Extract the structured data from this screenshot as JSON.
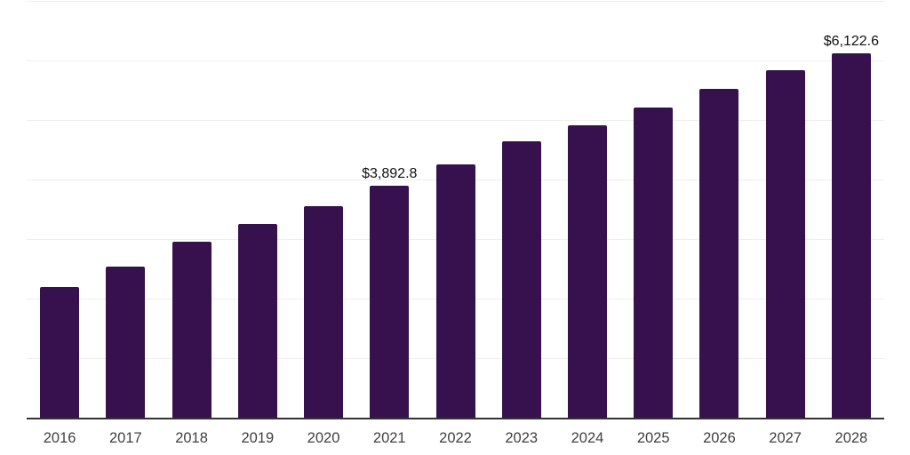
{
  "chart_data": {
    "type": "bar",
    "title": "",
    "xlabel": "",
    "ylabel": "",
    "categories": [
      "2016",
      "2017",
      "2018",
      "2019",
      "2020",
      "2021",
      "2022",
      "2023",
      "2024",
      "2025",
      "2026",
      "2027",
      "2028"
    ],
    "values": [
      2200,
      2545,
      2960,
      3255,
      3555,
      3892.8,
      4255,
      4640,
      4910,
      5215,
      5520,
      5830,
      6122.6
    ],
    "labeled_points": [
      {
        "category": "2021",
        "value": 3892.8,
        "label": "$3,892.8"
      },
      {
        "category": "2028",
        "value": 6122.6,
        "label": "$6,122.6"
      }
    ],
    "ylim": [
      0,
      7000
    ],
    "gridline_interval": 1000,
    "grid": "horizontal",
    "legend": "none",
    "y_axis_tick_labels_visible": false
  },
  "colors": {
    "bar": "#36114e",
    "gridline": "#eeeeee",
    "axis_line": "#333333",
    "tick_label": "#3f3f3f",
    "value_label": "#111111",
    "background": "#ffffff"
  }
}
